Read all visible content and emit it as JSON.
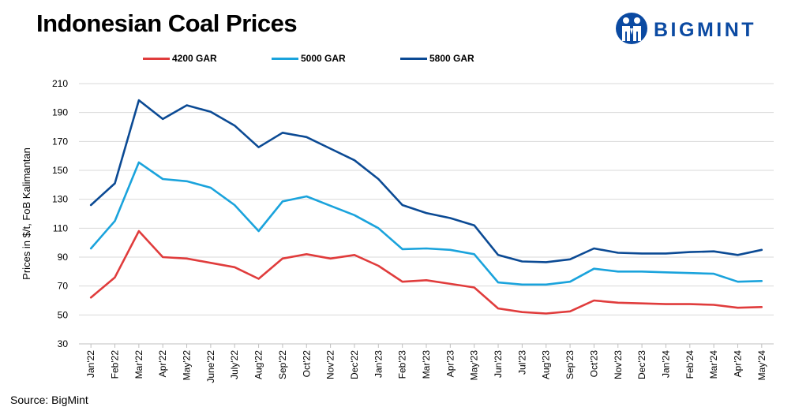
{
  "title": "Indonesian Coal Prices",
  "brand": "BIGMINT",
  "source": "Source: BigMint",
  "colors": {
    "brand": "#0b4aa2",
    "grid": "#d9d9d9",
    "axis": "#bfbfbf"
  },
  "chart_data": {
    "type": "line",
    "ylabel": "Prices in $/t, FoB Kalimantan",
    "xlabel": "",
    "ylim": [
      30,
      210
    ],
    "yticks": [
      30,
      50,
      70,
      90,
      110,
      130,
      150,
      170,
      190,
      210
    ],
    "grid": true,
    "legend_position": "top",
    "categories": [
      "Jan'22",
      "Feb'22",
      "Mar'22",
      "Apr'22",
      "May'22",
      "June'22",
      "July'22",
      "Aug'22",
      "Sep'22",
      "Oct'22",
      "Nov'22",
      "Dec'22",
      "Jan'23",
      "Feb'23",
      "Mar'23",
      "Apr'23",
      "May'23",
      "Jun'23",
      "Jul'23",
      "Aug'23",
      "Sep'23",
      "Oct'23",
      "Nov'23",
      "Dec'23",
      "Jan'24",
      "Feb'24",
      "Mar'24",
      "Apr'24",
      "May'24"
    ],
    "series": [
      {
        "name": "4200 GAR",
        "color": "#e03c3c",
        "values": [
          62,
          76,
          108,
          90,
          89,
          86,
          83,
          75,
          89,
          92,
          89,
          91.5,
          84,
          73,
          74,
          71.5,
          69,
          54.5,
          52,
          51,
          52.5,
          60,
          58.5,
          58,
          57.5,
          57.5,
          57,
          55,
          55.5
        ]
      },
      {
        "name": "5000 GAR",
        "color": "#1aa3dc",
        "values": [
          96,
          115,
          155.5,
          144,
          142.5,
          138,
          126,
          108,
          128.5,
          132,
          125.5,
          119,
          110,
          95.5,
          96,
          95,
          92,
          72.5,
          71,
          71,
          73,
          82,
          80,
          80,
          79.5,
          79,
          78.5,
          73,
          73.5
        ]
      },
      {
        "name": "5800 GAR",
        "color": "#0b4a94",
        "values": [
          126,
          141,
          198.5,
          185.5,
          195,
          190.5,
          181,
          166,
          176,
          173,
          165,
          157,
          144,
          126,
          120.5,
          117,
          112,
          91.5,
          87,
          86.5,
          88.5,
          96,
          93,
          92.5,
          92.5,
          93.5,
          94,
          91.5,
          95
        ]
      }
    ]
  }
}
